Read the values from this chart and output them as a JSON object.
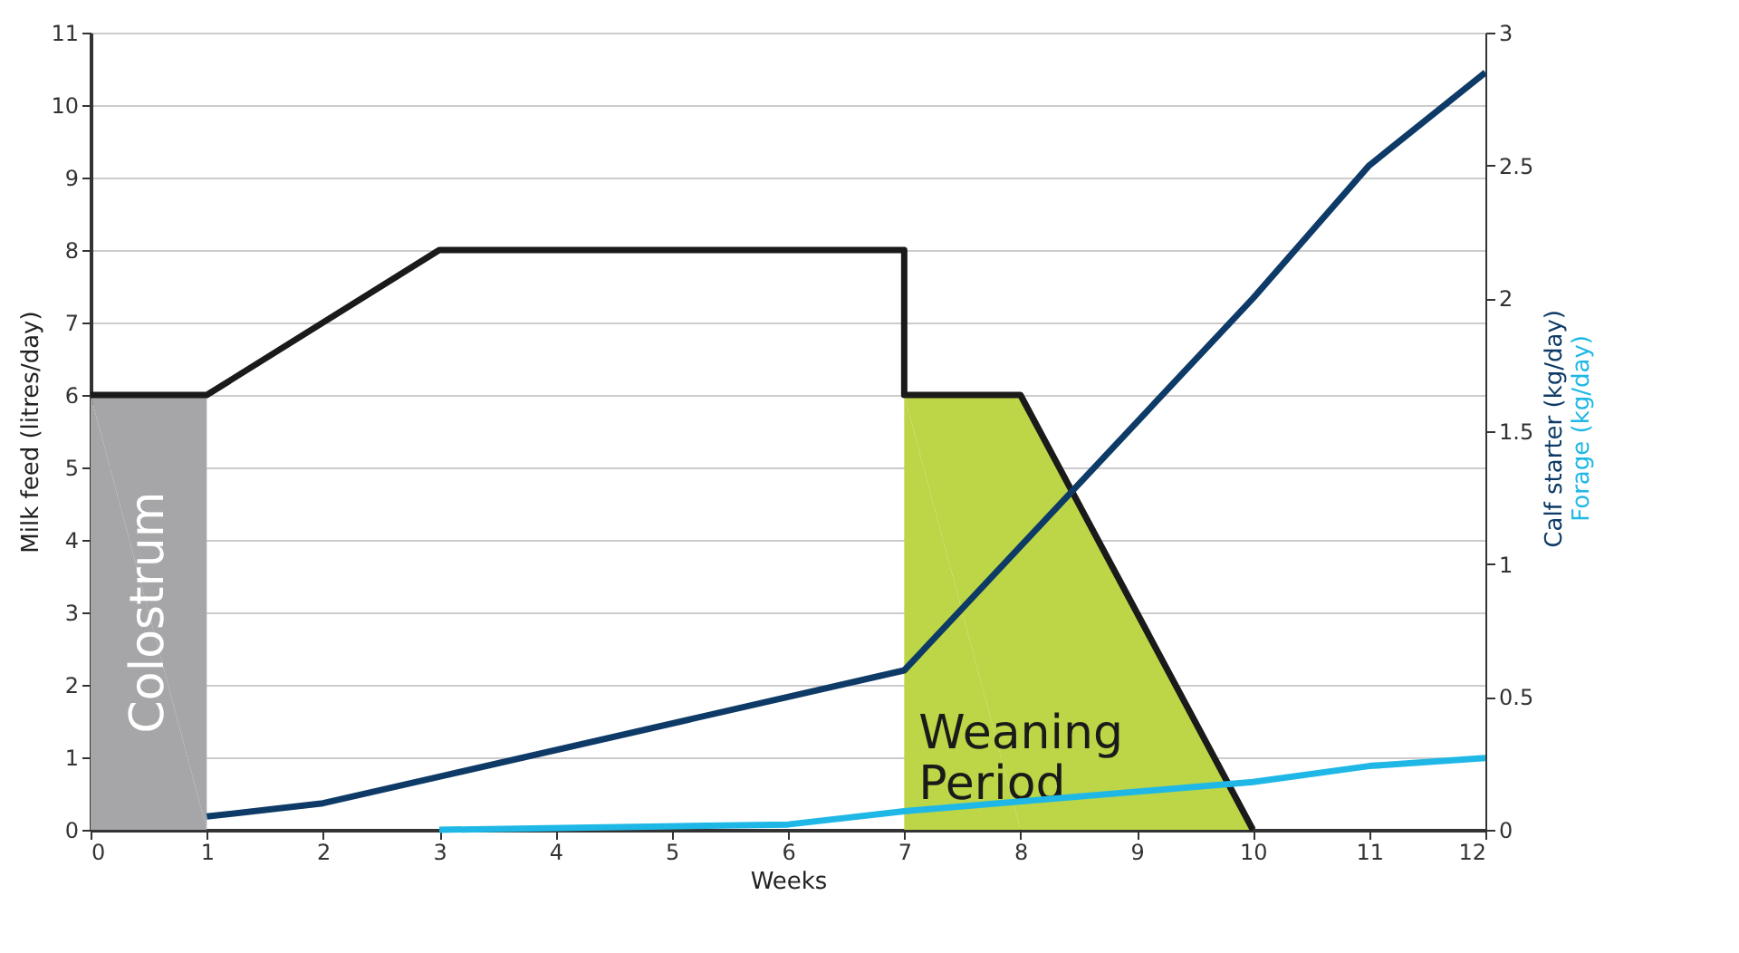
{
  "chart_data": {
    "type": "line",
    "xlabel": "Weeks",
    "ylabel": "Milk feed (litres/day)",
    "x": [
      0,
      1,
      3,
      7,
      7,
      8,
      10
    ],
    "xlim": [
      0,
      12
    ],
    "xticks": [
      0,
      1,
      2,
      3,
      4,
      5,
      6,
      7,
      8,
      9,
      10,
      11,
      12
    ],
    "ylim": [
      0,
      11
    ],
    "yticks": [
      0,
      1,
      2,
      3,
      4,
      5,
      6,
      7,
      8,
      9,
      10,
      11
    ],
    "y2lim": [
      0,
      3
    ],
    "y2ticks": [
      0,
      0.5,
      1,
      1.5,
      2,
      2.5,
      3
    ],
    "grid": "y",
    "line_style": "solid",
    "marker": "none",
    "series": [
      {
        "type": "area",
        "color": "#a6a6a8",
        "x": [
          0,
          1
        ],
        "values": [
          6,
          6
        ]
      },
      {
        "type": "area",
        "color": "#bcd647",
        "x": [
          7,
          8,
          10
        ],
        "values": [
          6,
          6,
          0
        ]
      },
      {
        "color": "#1a1a1a",
        "values": [
          6,
          6,
          8,
          8,
          6,
          6,
          0
        ]
      },
      {
        "name": "Calf starter (kg/day)",
        "color": "#0d3a66",
        "axis": "y2",
        "x": [
          1,
          2,
          3,
          7,
          10,
          11,
          12
        ],
        "values": [
          0.05,
          0.1,
          0.2,
          0.6,
          2.0,
          2.5,
          2.85
        ]
      },
      {
        "name": "Forage (kg/day)",
        "color": "#1fb8e6",
        "axis": "y2",
        "x": [
          3,
          6,
          7,
          10,
          11,
          12
        ],
        "values": [
          0,
          0.02,
          0.07,
          0.18,
          0.24,
          0.27
        ]
      }
    ],
    "annotations": [
      "Colostrum",
      "Weaning\nPeriod"
    ]
  }
}
